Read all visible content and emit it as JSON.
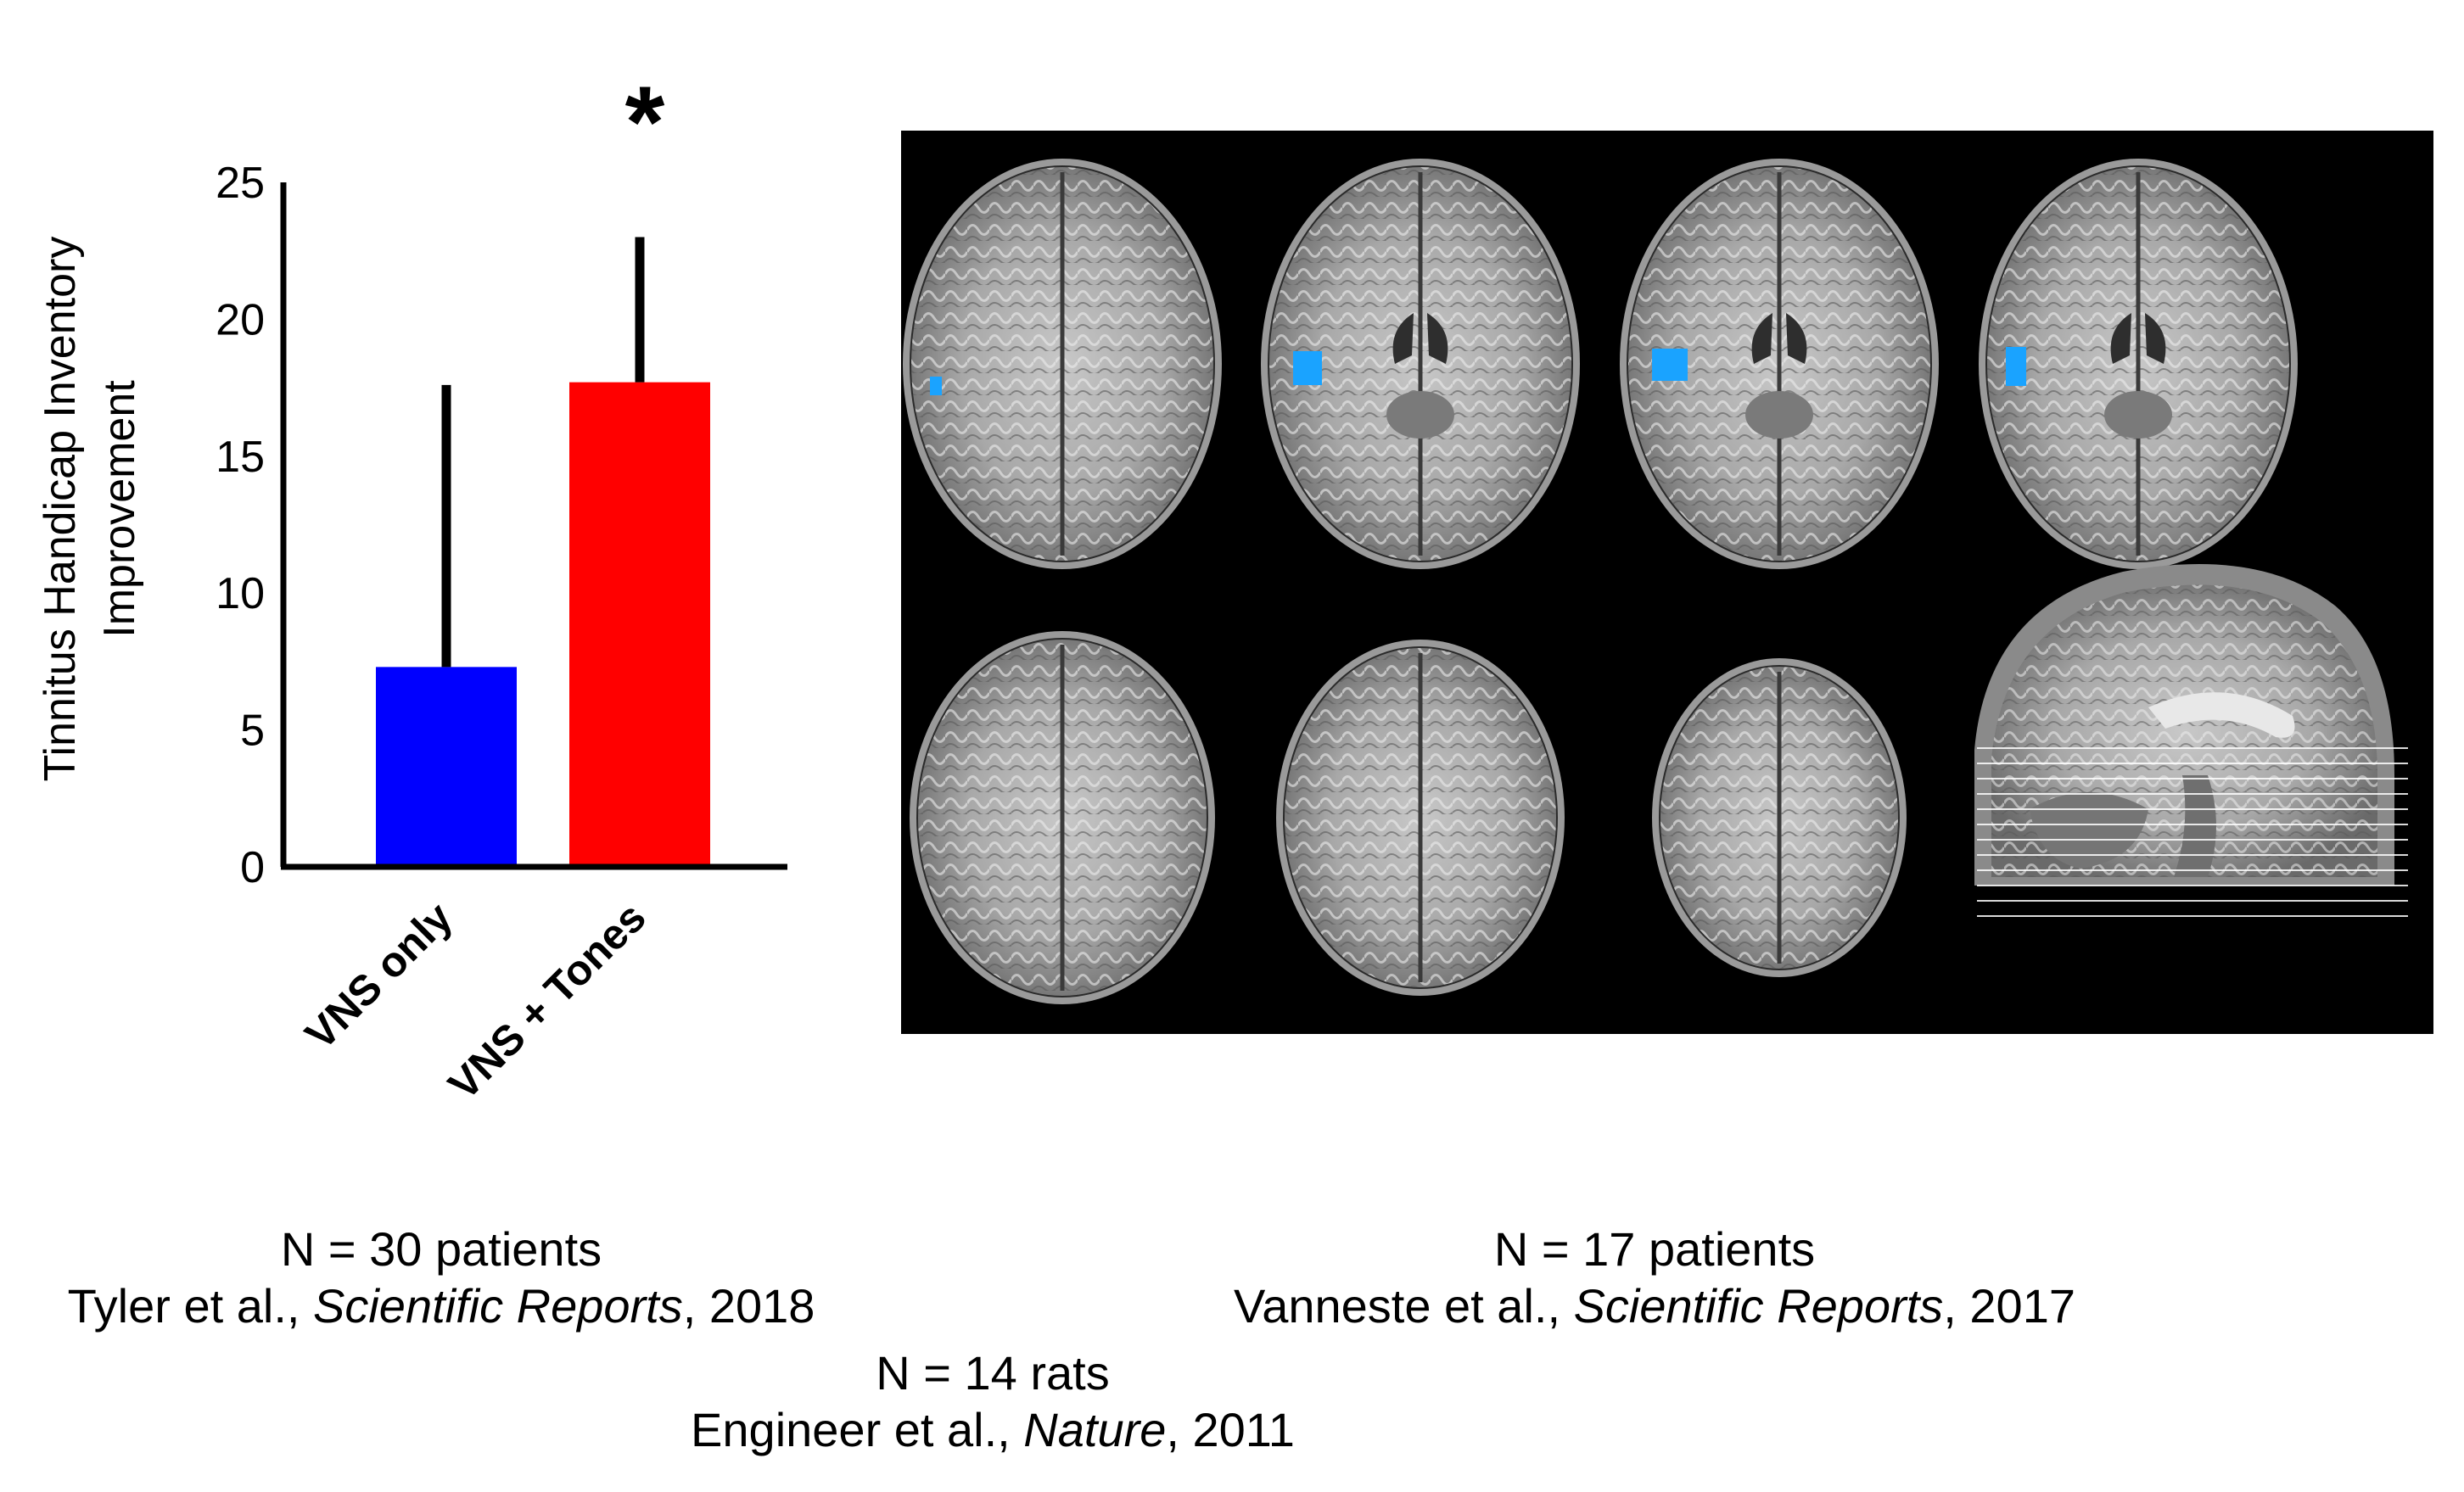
{
  "chart_data": {
    "type": "bar",
    "categories": [
      "VNS only",
      "VNS + Tones"
    ],
    "values": [
      7.3,
      17.7
    ],
    "error_upper": [
      17.6,
      23.0
    ],
    "ylabel_line1": "Tinnitus Handicap Inventory",
    "ylabel_line2": "Improvement",
    "ylim": [
      0,
      25
    ],
    "yticks": [
      "0",
      "5",
      "10",
      "15",
      "20",
      "25"
    ],
    "ytick_values": [
      0,
      5,
      10,
      15,
      20,
      25
    ],
    "colors": [
      "#0000ff",
      "#ff0000"
    ],
    "significance_marker": "*",
    "grid": false
  },
  "brain_panel": {
    "description_icon": "mri-axial-slices",
    "highlight_color": "#1aa3ff",
    "background": "#000000"
  },
  "captions": {
    "left": {
      "line1": "N = 30 patients",
      "authors": "Tyler et al., ",
      "journal": "Scientific Reports",
      "year": ", 2018"
    },
    "right": {
      "line1": "N = 17 patients",
      "authors": "Vanneste et al., ",
      "journal": "Scientific Reports",
      "year": ", 2017"
    },
    "center": {
      "line1": "N = 14 rats",
      "authors": "Engineer et al., ",
      "journal": "Nature",
      "year": ", 2011"
    }
  }
}
